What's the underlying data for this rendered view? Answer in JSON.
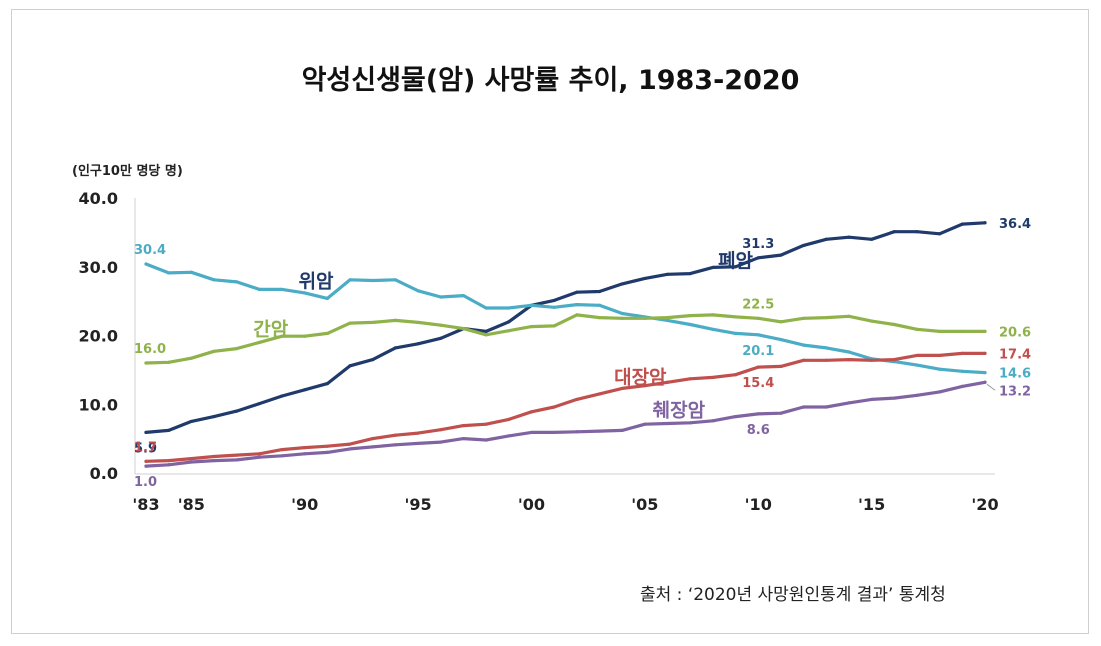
{
  "title": "악성신생물(암) 사망률 추이, 1983-2020",
  "unit_label": "(인구10만 명당 명)",
  "source": "출처 : ‘2020년 사망원인통계 결과’ 통계청",
  "chart_data": {
    "type": "line",
    "ylim": [
      0,
      40
    ],
    "y_ticks": [
      "0.0",
      "10.0",
      "20.0",
      "30.0",
      "40.0"
    ],
    "y_tick_values": [
      0,
      10,
      20,
      30,
      40
    ],
    "x_ticks": [
      "'83",
      "'85",
      "'90",
      "'95",
      "'00",
      "'05",
      "'10",
      "'15",
      "'20"
    ],
    "x_tick_values": [
      1983,
      1985,
      1990,
      1995,
      2000,
      2005,
      2010,
      2015,
      2020
    ],
    "x": [
      1983,
      1984,
      1985,
      1986,
      1987,
      1988,
      1989,
      1990,
      1991,
      1992,
      1993,
      1994,
      1995,
      1996,
      1997,
      1998,
      1999,
      2000,
      2001,
      2002,
      2003,
      2004,
      2005,
      2006,
      2007,
      2008,
      2009,
      2010,
      2011,
      2012,
      2013,
      2014,
      2015,
      2016,
      2017,
      2018,
      2019,
      2020
    ],
    "grid": false,
    "series": [
      {
        "name": "폐암",
        "color": "#1f3a6b",
        "values": [
          5.9,
          6.2,
          7.5,
          8.2,
          9.0,
          10.1,
          11.2,
          12.1,
          13.0,
          15.6,
          16.5,
          18.2,
          18.8,
          19.6,
          21.0,
          20.6,
          22.0,
          24.4,
          25.1,
          26.3,
          26.4,
          27.5,
          28.3,
          28.9,
          29.0,
          29.9,
          30.0,
          31.3,
          31.7,
          33.1,
          34.0,
          34.3,
          34.0,
          35.1,
          35.1,
          34.8,
          36.2,
          36.4
        ]
      },
      {
        "name": "위암",
        "color": "#4bacc6",
        "values": [
          30.4,
          29.1,
          29.2,
          28.1,
          27.8,
          26.7,
          26.7,
          26.2,
          25.4,
          28.1,
          28.0,
          28.1,
          26.5,
          25.6,
          25.8,
          24.0,
          24.0,
          24.4,
          24.1,
          24.5,
          24.4,
          23.2,
          22.7,
          22.2,
          21.6,
          20.9,
          20.3,
          20.1,
          19.4,
          18.6,
          18.2,
          17.6,
          16.6,
          16.2,
          15.7,
          15.1,
          14.8,
          14.6
        ]
      },
      {
        "name": "간암",
        "color": "#8fb24a",
        "values": [
          16.0,
          16.1,
          16.7,
          17.7,
          18.1,
          19.0,
          19.9,
          19.9,
          20.3,
          21.8,
          21.9,
          22.2,
          21.9,
          21.5,
          21.0,
          20.1,
          20.7,
          21.3,
          21.4,
          23.0,
          22.6,
          22.5,
          22.5,
          22.6,
          22.9,
          23.0,
          22.7,
          22.5,
          22.0,
          22.5,
          22.6,
          22.8,
          22.1,
          21.6,
          20.9,
          20.6,
          20.6,
          20.6
        ]
      },
      {
        "name": "대장암",
        "color": "#c0504d",
        "values": [
          1.7,
          1.8,
          2.1,
          2.4,
          2.6,
          2.8,
          3.4,
          3.7,
          3.9,
          4.2,
          5.0,
          5.5,
          5.8,
          6.3,
          6.9,
          7.1,
          7.8,
          8.9,
          9.6,
          10.7,
          11.5,
          12.3,
          12.7,
          13.2,
          13.7,
          13.9,
          14.3,
          15.4,
          15.5,
          16.4,
          16.4,
          16.5,
          16.4,
          16.5,
          17.1,
          17.1,
          17.4,
          17.4
        ]
      },
      {
        "name": "췌장암",
        "color": "#8064a2",
        "values": [
          1.0,
          1.2,
          1.6,
          1.8,
          1.9,
          2.3,
          2.5,
          2.8,
          3.0,
          3.5,
          3.8,
          4.1,
          4.3,
          4.5,
          5.0,
          4.8,
          5.4,
          5.9,
          5.9,
          6.0,
          6.1,
          6.2,
          7.1,
          7.2,
          7.3,
          7.6,
          8.2,
          8.6,
          8.7,
          9.6,
          9.6,
          10.2,
          10.7,
          10.9,
          11.3,
          11.8,
          12.6,
          13.2
        ]
      }
    ],
    "series_labels": [
      {
        "name": "폐암",
        "x": 2009,
        "y": 30.0,
        "color": "#1f3a6b"
      },
      {
        "name": "위암",
        "x": 1990.5,
        "y": 27.0,
        "color": "#1f3a6b"
      },
      {
        "name": "간암",
        "x": 1988.5,
        "y": 20.0,
        "color": "#8fb24a"
      },
      {
        "name": "대장암",
        "x": 2004.8,
        "y": 13.0,
        "color": "#c0504d"
      },
      {
        "name": "췌장암",
        "x": 2006.5,
        "y": 8.2,
        "color": "#8064a2"
      }
    ],
    "data_labels": [
      {
        "text": "30.4",
        "x": 1983,
        "y": 30.4,
        "series": "위암",
        "pos": "above"
      },
      {
        "text": "16.0",
        "x": 1983,
        "y": 16.0,
        "series": "간암",
        "pos": "above"
      },
      {
        "text": "5.9",
        "x": 1983,
        "y": 5.9,
        "series": "폐암",
        "pos": "below"
      },
      {
        "text": "1.7",
        "x": 1983,
        "y": 1.7,
        "series": "대장암",
        "pos": "above"
      },
      {
        "text": "1.0",
        "x": 1983,
        "y": 1.0,
        "series": "췌장암",
        "pos": "below"
      },
      {
        "text": "31.3",
        "x": 2010,
        "y": 31.3,
        "series": "폐암",
        "pos": "above"
      },
      {
        "text": "22.5",
        "x": 2010,
        "y": 22.5,
        "series": "간암",
        "pos": "above"
      },
      {
        "text": "20.1",
        "x": 2010,
        "y": 20.1,
        "series": "위암",
        "pos": "below"
      },
      {
        "text": "15.4",
        "x": 2010,
        "y": 15.4,
        "series": "대장암",
        "pos": "below"
      },
      {
        "text": "8.6",
        "x": 2010,
        "y": 8.6,
        "series": "췌장암",
        "pos": "below"
      },
      {
        "text": "36.4",
        "x": 2020,
        "y": 36.4,
        "series": "폐암",
        "pos": "right"
      },
      {
        "text": "20.6",
        "x": 2020,
        "y": 20.6,
        "series": "간암",
        "pos": "right"
      },
      {
        "text": "17.4",
        "x": 2020,
        "y": 17.4,
        "series": "대장암",
        "pos": "right"
      },
      {
        "text": "14.6",
        "x": 2020,
        "y": 14.6,
        "series": "위암",
        "pos": "right"
      },
      {
        "text": "13.2",
        "x": 2020,
        "y": 13.2,
        "series": "췌장암",
        "pos": "right-low"
      }
    ]
  }
}
